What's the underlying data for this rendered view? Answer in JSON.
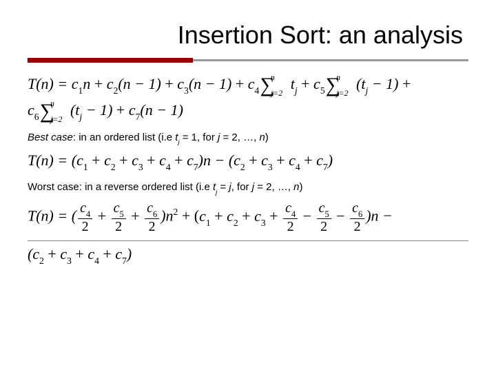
{
  "slide": {
    "title": "Insertion Sort: an analysis",
    "colors": {
      "title_rule_accent": "#9a0000",
      "title_rule_grey": "#999999",
      "text": "#000000",
      "background": "#ffffff"
    },
    "typography": {
      "title_fontsize": 36,
      "body_fontsize": 15,
      "formula_fontsize": 22,
      "title_font": "Verdana",
      "formula_font": "Times New Roman"
    },
    "formulas": {
      "general": {
        "line1": {
          "prefix": "T(n) = ",
          "terms": [
            {
              "coef": "c",
              "coef_sub": "1",
              "factor": "n"
            },
            {
              "coef": "c",
              "coef_sub": "2",
              "factor": "(n − 1)"
            },
            {
              "coef": "c",
              "coef_sub": "3",
              "factor": "(n − 1)"
            }
          ],
          "sum_terms": [
            {
              "coef": "c",
              "coef_sub": "4",
              "sum_lower": "j=2",
              "sum_upper": "n",
              "body": "t",
              "body_sub": "j"
            },
            {
              "coef": "c",
              "coef_sub": "5",
              "sum_lower": "j=2",
              "sum_upper": "n",
              "body_prefix": "(t",
              "body_sub": "j",
              "body_suffix": " − 1)"
            }
          ],
          "trailing": " +"
        },
        "line2": {
          "sum_term": {
            "coef": "c",
            "coef_sub": "6",
            "sum_lower": "j=2",
            "sum_upper": "n",
            "body_prefix": "(t",
            "body_sub": "j",
            "body_suffix": " − 1)"
          },
          "tail_term": {
            "coef": "c",
            "coef_sub": "7",
            "factor": "(n − 1)"
          }
        }
      },
      "best_case": {
        "label_italic": "Best case",
        "label_rest": ": in an ordered list (i.e ",
        "var": "t",
        "var_sub": "j",
        "eq_text": " = 1, for ",
        "for_var": "j",
        "range_text": " = 2, …, ",
        "range_end": "n",
        "closing": ")",
        "expr_prefix": "T(n) = (",
        "group1": [
          "c1",
          "c2",
          "c3",
          "c4",
          "c7"
        ],
        "mid": ")n − (",
        "group2": [
          "c2",
          "c3",
          "c4",
          "c7"
        ],
        "suffix": ")"
      },
      "worst_case": {
        "label": "Worst case: in a reverse ordered list (i.e ",
        "var": "t",
        "var_sub": "j",
        "eq_text": " = ",
        "eq_var": "j",
        "for_text": ", for ",
        "for_var": "j",
        "range_text": " = 2, …, ",
        "range_end": "n",
        "closing": ")",
        "line1": {
          "prefix": "T(n) = (",
          "fracs1": [
            {
              "num_coef": "c",
              "num_sub": "4",
              "den": "2",
              "sign": ""
            },
            {
              "num_coef": "c",
              "num_sub": "5",
              "den": "2",
              "sign": " + "
            },
            {
              "num_coef": "c",
              "num_sub": "6",
              "den": "2",
              "sign": " + "
            }
          ],
          "after_fracs1": ")n",
          "sq": "2",
          "plus": " + (",
          "plain_terms": [
            "c1",
            "c2",
            "c3"
          ],
          "fracs2": [
            {
              "num_coef": "c",
              "num_sub": "4",
              "den": "2",
              "sign": " + "
            },
            {
              "num_coef": "c",
              "num_sub": "5",
              "den": "2",
              "sign": " − "
            },
            {
              "num_coef": "c",
              "num_sub": "6",
              "den": "2",
              "sign": " − "
            }
          ],
          "tail": ")n −"
        },
        "line2": {
          "open": "(",
          "terms": [
            "c2",
            "c3",
            "c4",
            "c7"
          ],
          "close": ")"
        }
      }
    }
  }
}
